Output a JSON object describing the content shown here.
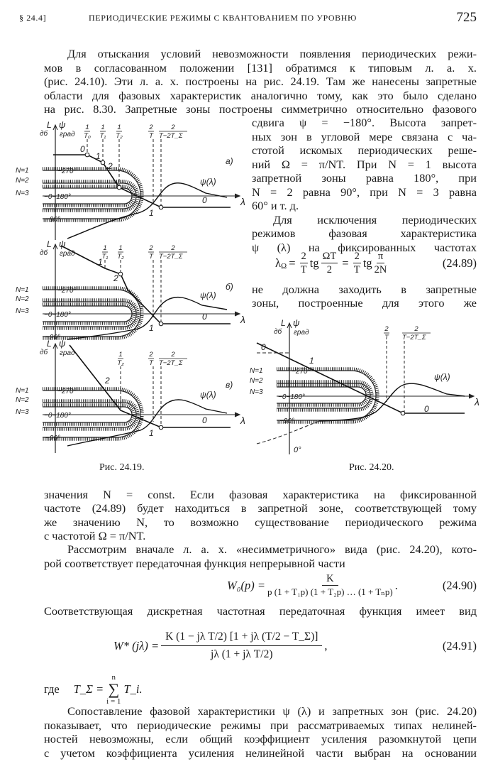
{
  "header": {
    "section": "§ 24.4]",
    "title": "ПЕРИОДИЧЕСКИЕ РЕЖИМЫ С КВАНТОВАНИЕМ ПО УРОВНЮ",
    "page_number": "725"
  },
  "top_lines": [
    "Для отыскания условий невозможности появления периодических режи-",
    "мов в согласованном положении [131] обратимся к типовым л. а. х.",
    "(рис. 24.10). Эти л. а. х. построены на рис. 24.19. Там же нанесены запретные",
    "области для фазовых характеристик аналогично тому, как это было сделано",
    "на рис. 8.30. Запретные зоны построены симметрично относительно фазового"
  ],
  "right_lines": [
    "сдвига ψ = −180°. Высота запрет-",
    "ных зон в угловой мере связана с ча-",
    "стотой искомых периодических реше-",
    "ний Ω = π/NT. При N = 1 высота",
    "запретной зоны равна 180°, при",
    "N = 2 равна 90°, при N = 3 равна",
    "60° и т. д.",
    "Для исключения периодических",
    "режимов фазовая характеристика",
    "ψ (λ) на фиксированных частотах"
  ],
  "eq_24_89": {
    "lhs": "λ",
    "lhs_sub": "Ω",
    "eq": "=",
    "f1n": "2",
    "f1d": "T",
    "tg": "tg",
    "f2n": "ΩT",
    "f2d": "2",
    "eq2": "=",
    "f3n": "2",
    "f3d": "T",
    "tg2": "tg",
    "f4n": "π",
    "f4d": "2N",
    "number": "(24.89)"
  },
  "right_lines_after": [
    "не должна заходить в запретные",
    "зоны, построенные для этого же"
  ],
  "fig_24_19": {
    "caption": "Рис. 24.19.",
    "panels": [
      {
        "tag": "а)",
        "fracs": [
          [
            "1",
            "T₀"
          ],
          [
            "1",
            "T₁"
          ],
          [
            "1",
            "T₂"
          ],
          [
            "2",
            "T"
          ],
          [
            "2",
            "T−2T_Σ"
          ]
        ],
        "segments": [
          "0",
          "1",
          "2",
          "1",
          "0"
        ]
      },
      {
        "tag": "б)",
        "fracs": [
          [
            "1",
            "T₁"
          ],
          [
            "1",
            "T₂"
          ],
          [
            "2",
            "T"
          ],
          [
            "2",
            "T−2T_Σ"
          ]
        ],
        "segments": [
          "1",
          "2",
          "1",
          "0"
        ]
      },
      {
        "tag": "в)",
        "fracs": [
          [
            "1",
            "T₂"
          ],
          [
            "2",
            "T"
          ],
          [
            "2",
            "T−2T_Σ"
          ]
        ],
        "segments": [
          "2",
          "1",
          "0"
        ]
      }
    ],
    "axis": {
      "L": "L",
      "L_unit": "дб",
      "psi": "ψ",
      "psi_unit": "град",
      "x": "λ"
    },
    "zones": {
      "n1": "N=1",
      "n2": "N=2",
      "n3": "N=3",
      "deg270": "−270°",
      "deg180": "−0−180°",
      "deg90": "−90°"
    },
    "psi_label": "ψ(λ)"
  },
  "fig_24_20": {
    "caption": "Рис. 24.20.",
    "axis": {
      "L": "L",
      "L_unit": "дб",
      "psi": "ψ",
      "psi_unit": "град",
      "x": "λ"
    },
    "zones": {
      "n1": "N=1",
      "n2": "N=2",
      "n3": "N=3",
      "deg270": "−270°",
      "deg180": "−0−180°",
      "deg90": "−90°",
      "deg0": "0°"
    },
    "fracs": [
      [
        "2",
        "T"
      ],
      [
        "2",
        "T−2T_Σ"
      ]
    ],
    "segments": [
      "0",
      "1",
      "0"
    ],
    "psi_label": "ψ(λ)"
  },
  "bottom_lines_1": [
    "значения N = const. Если фазовая характеристика на фиксированной",
    "частоте (24.89) будет находиться в запретной зоне, соответствующей тому",
    "же значению N, то возможно существование периодического режима",
    "с частотой Ω = π/NT.",
    "Рассмотрим вначале л. а. х. «несимметричного» вида (рис. 24.20), кото-",
    "рой соответствует передаточная функция непрерывной части"
  ],
  "eq_24_90": {
    "lhs": "W₀(p) =",
    "num": "K",
    "den": "p (1 + T₁p) (1 + T₂p) … (1 + Tₙp)",
    "tail": ".",
    "number": "(24.90)"
  },
  "line_before_91": "Соответствующая дискретная частотная передаточная функция имеет вид",
  "eq_24_91": {
    "lhs": "W* (jλ) =",
    "num": "K (1 − jλ T/2) [1 + jλ (T/2 − T_Σ)]",
    "den": "jλ (1 + jλ T/2)",
    "tail": ",",
    "number": "(24.91)"
  },
  "where": {
    "word": "где",
    "lhs": "T_Σ =",
    "sum_top": "n",
    "sum_sym": "∑",
    "sum_bottom": "i = 1",
    "rhs": "T_i."
  },
  "bottom_lines_2": [
    "Сопоставление фазовой характеристики ψ (λ) и запретных зон (рис. 24.20)",
    "показывает, что периодические режимы при рассматриваемых типах нелиней-",
    "ностей невозможны, если общий коэффициент усиления разомкнутой цепи",
    "с учетом коэффициента усиления нелинейной части выбран на основании"
  ]
}
